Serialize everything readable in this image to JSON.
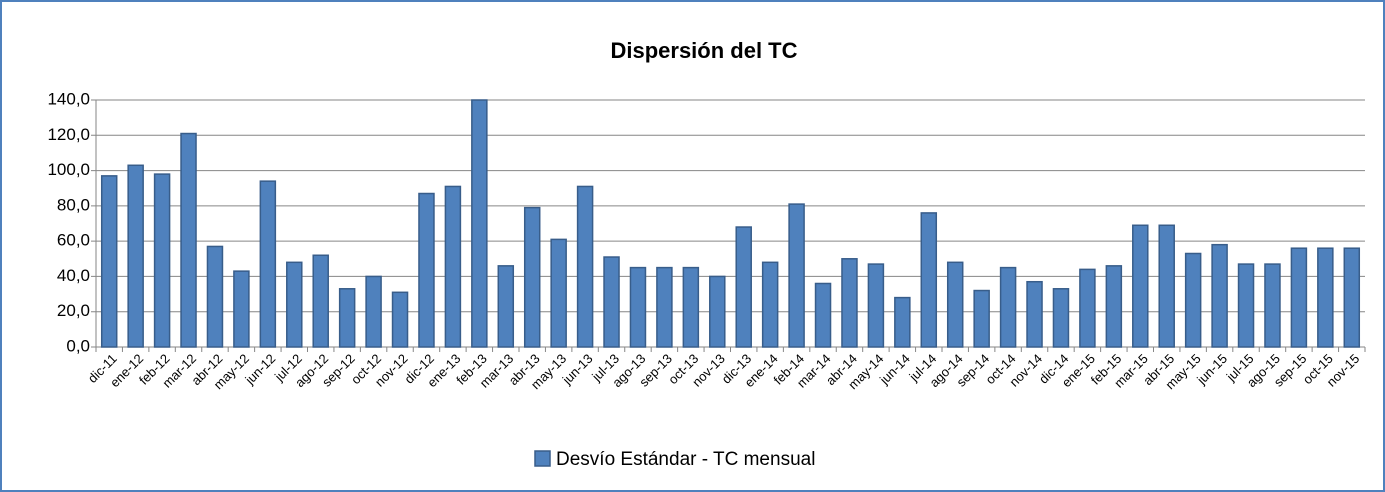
{
  "chart_data": {
    "type": "bar",
    "title": "Dispersión del TC",
    "categories": [
      "dic-11",
      "ene-12",
      "feb-12",
      "mar-12",
      "abr-12",
      "may-12",
      "jun-12",
      "jul-12",
      "ago-12",
      "sep-12",
      "oct-12",
      "nov-12",
      "dic-12",
      "ene-13",
      "feb-13",
      "mar-13",
      "abr-13",
      "may-13",
      "jun-13",
      "jul-13",
      "ago-13",
      "sep-13",
      "oct-13",
      "nov-13",
      "dic-13",
      "ene-14",
      "feb-14",
      "mar-14",
      "abr-14",
      "may-14",
      "jun-14",
      "jul-14",
      "ago-14",
      "sep-14",
      "oct-14",
      "nov-14",
      "dic-14",
      "ene-15",
      "feb-15",
      "mar-15",
      "abr-15",
      "may-15",
      "jun-15",
      "jul-15",
      "ago-15",
      "sep-15",
      "oct-15",
      "nov-15"
    ],
    "series": [
      {
        "name": "Desvío Estándar - TC mensual",
        "color": "#4f81bd",
        "values": [
          97,
          103,
          98,
          121,
          57,
          43,
          94,
          48,
          52,
          33,
          40,
          31,
          87,
          91,
          140,
          46,
          79,
          61,
          91,
          51,
          45,
          45,
          45,
          40,
          68,
          48,
          81,
          36,
          50,
          47,
          28,
          76,
          48,
          32,
          45,
          37,
          33,
          44,
          46,
          69,
          69,
          53,
          58,
          47,
          47,
          56,
          56,
          56
        ]
      }
    ],
    "ylim": [
      0,
      140
    ],
    "yticks": [
      {
        "value": 0,
        "label": "0,0"
      },
      {
        "value": 20,
        "label": "20,0"
      },
      {
        "value": 40,
        "label": "40,0"
      },
      {
        "value": 60,
        "label": "60,0"
      },
      {
        "value": 80,
        "label": "80,0"
      },
      {
        "value": 100,
        "label": "100,0"
      },
      {
        "value": 120,
        "label": "120,0"
      },
      {
        "value": 140,
        "label": "140,0"
      }
    ],
    "grid": true,
    "legend": "bottom"
  }
}
